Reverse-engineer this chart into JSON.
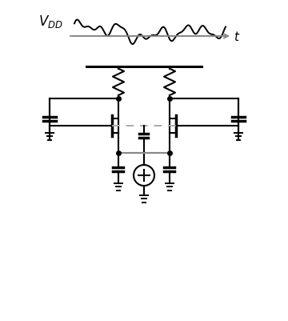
{
  "bg_color": "#ffffff",
  "line_color": "#000000",
  "gray_color": "#888888",
  "dashed_color": "#aaaaaa",
  "fig_width": 3.6,
  "fig_height": 4.02
}
